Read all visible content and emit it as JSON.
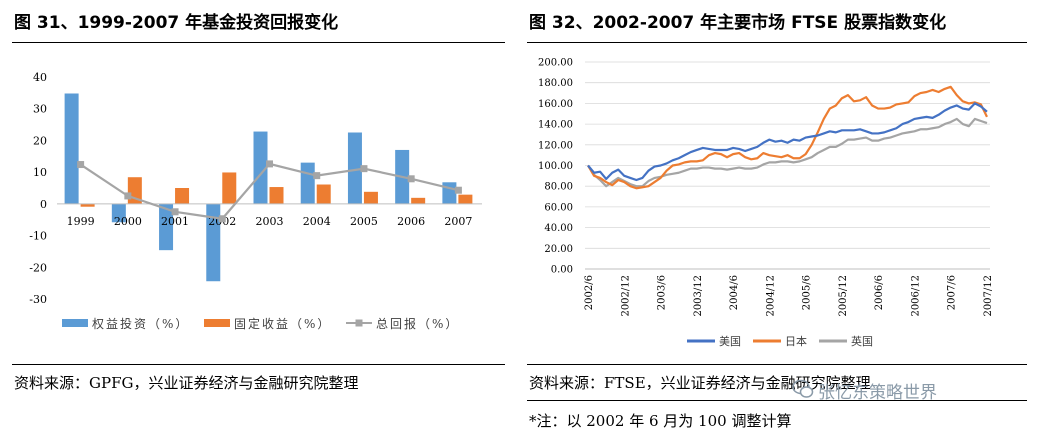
{
  "left": {
    "title": "图 31、1999-2007 年基金投资回报变化",
    "source": "资料来源：GPFG，兴业证券经济与金融研究院整理",
    "chart_data": {
      "type": "bar",
      "categories": [
        "1999",
        "2000",
        "2001",
        "2002",
        "2003",
        "2004",
        "2005",
        "2006",
        "2007"
      ],
      "ylim": [
        -30,
        40
      ],
      "yticks": [
        -30,
        -20,
        -10,
        0,
        10,
        20,
        30,
        40
      ],
      "grid": false,
      "legend_position": "bottom",
      "series": [
        {
          "name": "权益投资（%）",
          "type": "bar",
          "color": "#5b9bd5",
          "values": [
            34.8,
            -5.8,
            -14.6,
            -24.4,
            22.8,
            13.0,
            22.5,
            17.0,
            6.8
          ]
        },
        {
          "name": "固定收益（%）",
          "type": "bar",
          "color": "#ed7d31",
          "values": [
            -0.9,
            8.4,
            5.0,
            9.9,
            5.3,
            6.1,
            3.8,
            1.9,
            2.9
          ]
        },
        {
          "name": "总回报（%）",
          "type": "line",
          "color": "#a5a5a5",
          "values": [
            12.4,
            2.5,
            -2.5,
            -4.7,
            12.6,
            8.9,
            11.1,
            7.9,
            4.3
          ]
        }
      ]
    }
  },
  "right": {
    "title": "图 32、2002-2007 年主要市场 FTSE 股票指数变化",
    "source": "资料来源：FTSE，兴业证券经济与金融研究院整理",
    "note": "*注：以 2002 年 6 月为 100 调整计算",
    "watermark": "张忆东策略世界",
    "chart_data": {
      "type": "line",
      "x": [
        "2002/6",
        "2002/7",
        "2002/8",
        "2002/9",
        "2002/10",
        "2002/11",
        "2002/12",
        "2003/1",
        "2003/2",
        "2003/3",
        "2003/4",
        "2003/5",
        "2003/6",
        "2003/7",
        "2003/8",
        "2003/9",
        "2003/10",
        "2003/11",
        "2003/12",
        "2004/1",
        "2004/2",
        "2004/3",
        "2004/4",
        "2004/5",
        "2004/6",
        "2004/7",
        "2004/8",
        "2004/9",
        "2004/10",
        "2004/11",
        "2004/12",
        "2005/1",
        "2005/2",
        "2005/3",
        "2005/4",
        "2005/5",
        "2005/6",
        "2005/7",
        "2005/8",
        "2005/9",
        "2005/10",
        "2005/11",
        "2005/12",
        "2006/1",
        "2006/2",
        "2006/3",
        "2006/4",
        "2006/5",
        "2006/6",
        "2006/7",
        "2006/8",
        "2006/9",
        "2006/10",
        "2006/11",
        "2006/12",
        "2007/1",
        "2007/2",
        "2007/3",
        "2007/4",
        "2007/5",
        "2007/6",
        "2007/7",
        "2007/8",
        "2007/9",
        "2007/10",
        "2007/11",
        "2007/12"
      ],
      "xtick_labels": [
        "2002/6",
        "2002/12",
        "2003/6",
        "2003/12",
        "2004/6",
        "2004/12",
        "2005/6",
        "2005/12",
        "2006/6",
        "2006/12",
        "2007/6",
        "2007/12"
      ],
      "ylim": [
        0,
        200
      ],
      "yticks": [
        "0.00",
        "20.00",
        "40.00",
        "60.00",
        "80.00",
        "100.00",
        "120.00",
        "140.00",
        "160.00",
        "180.00",
        "200.00"
      ],
      "grid": true,
      "legend_position": "bottom",
      "series": [
        {
          "name": "美国",
          "color": "#4472c4",
          "values": [
            100,
            93,
            94,
            87,
            93,
            96,
            90,
            88,
            86,
            88,
            95,
            99,
            100,
            102,
            105,
            107,
            110,
            113,
            115,
            117,
            116,
            115,
            115,
            115,
            117,
            116,
            114,
            116,
            118,
            122,
            125,
            123,
            124,
            122,
            125,
            124,
            127,
            128,
            129,
            131,
            133,
            132,
            134,
            134,
            134,
            135,
            133,
            131,
            131,
            132,
            134,
            136,
            140,
            142,
            145,
            146,
            147,
            146,
            149,
            153,
            156,
            158,
            155,
            154,
            160,
            157,
            152
          ]
        },
        {
          "name": "日本",
          "color": "#ed7d31",
          "values": [
            100,
            90,
            88,
            84,
            81,
            86,
            84,
            80,
            78,
            79,
            80,
            84,
            88,
            95,
            100,
            101,
            103,
            104,
            104,
            105,
            110,
            112,
            111,
            108,
            111,
            112,
            108,
            106,
            107,
            112,
            110,
            109,
            108,
            110,
            107,
            107,
            111,
            120,
            132,
            145,
            155,
            158,
            165,
            168,
            162,
            163,
            166,
            158,
            155,
            155,
            156,
            159,
            160,
            161,
            167,
            170,
            171,
            173,
            171,
            174,
            176,
            168,
            162,
            160,
            161,
            159,
            147
          ]
        },
        {
          "name": "英国",
          "color": "#a5a5a5",
          "values": [
            100,
            91,
            86,
            80,
            84,
            88,
            85,
            82,
            80,
            80,
            85,
            88,
            89,
            91,
            92,
            93,
            95,
            97,
            97,
            98,
            98,
            97,
            97,
            96,
            97,
            98,
            97,
            97,
            98,
            101,
            103,
            103,
            104,
            104,
            103,
            104,
            106,
            108,
            112,
            115,
            118,
            118,
            121,
            125,
            125,
            126,
            127,
            124,
            124,
            126,
            127,
            129,
            131,
            132,
            133,
            135,
            135,
            136,
            137,
            140,
            142,
            145,
            140,
            138,
            145,
            143,
            141
          ]
        }
      ]
    }
  }
}
